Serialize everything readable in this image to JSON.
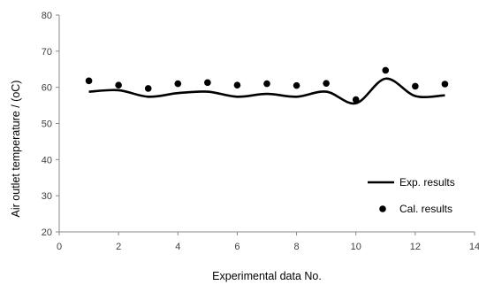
{
  "chart_data": {
    "type": "line",
    "title": "",
    "xlabel": "Experimental data No.",
    "ylabel": "Air outlet temperature / (oC)",
    "xlim": [
      0,
      14
    ],
    "ylim": [
      20,
      80
    ],
    "xticks": [
      0,
      2,
      4,
      6,
      8,
      10,
      12,
      14
    ],
    "yticks": [
      20,
      30,
      40,
      50,
      60,
      70,
      80
    ],
    "grid": false,
    "legend_position": "bottom-right",
    "series": [
      {
        "name": "Exp. results",
        "style": "smooth-line",
        "color": "#000000",
        "x": [
          1,
          2,
          3,
          4,
          5,
          6,
          7,
          8,
          9,
          10,
          11,
          12,
          13
        ],
        "y": [
          58.8,
          59.2,
          57.4,
          58.4,
          58.8,
          57.4,
          58.2,
          57.4,
          58.8,
          55.6,
          62.4,
          57.6,
          57.8
        ]
      },
      {
        "name": "Cal. results",
        "style": "markers",
        "color": "#000000",
        "x": [
          1,
          2,
          3,
          4,
          5,
          6,
          7,
          8,
          9,
          10,
          11,
          12,
          13
        ],
        "y": [
          61.8,
          60.6,
          59.7,
          61.0,
          61.3,
          60.6,
          61.0,
          60.5,
          61.1,
          56.6,
          64.7,
          60.3,
          60.9
        ]
      }
    ]
  }
}
